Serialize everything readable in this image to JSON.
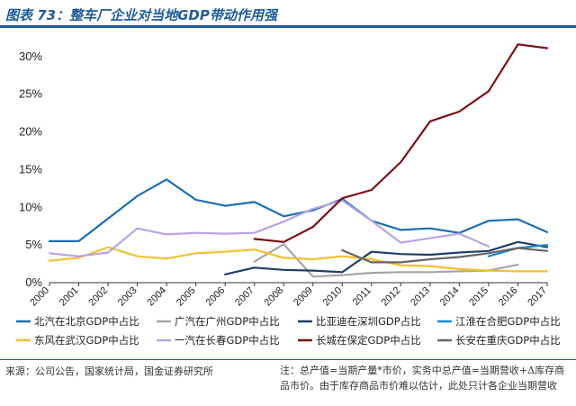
{
  "title": "图表 73：整车厂企业对当地GDP带动作用强",
  "source": "来源：公司公告，国家统计局，国金证券研究所",
  "note": "注：总产值=当期产量*市价，实务中总产值=当期营收+Δ库存商品市价。由于库存商品市价难以估计，此处只计各企业当期营收",
  "colors": {
    "beiqi": "#1a6fb5",
    "guangqi": "#a6a6a6",
    "byd": "#1f3f66",
    "jac": "#1a8ad4",
    "dongfeng": "#f2c12e",
    "faw": "#b9a3e3",
    "greatwall": "#7b1015",
    "changan": "#666666",
    "accent": "#1f5c99"
  },
  "chart_data": {
    "type": "line",
    "x": [
      "2000",
      "2001",
      "2002",
      "2003",
      "2004",
      "2005",
      "2006",
      "2007",
      "2008",
      "2009",
      "2010",
      "2011",
      "2012",
      "2013",
      "2014",
      "2015",
      "2016",
      "2017"
    ],
    "ylim": [
      0,
      32
    ],
    "yticks": [
      "0%",
      "5%",
      "10%",
      "15%",
      "20%",
      "25%",
      "30%"
    ],
    "ytick_values": [
      0,
      5,
      10,
      15,
      20,
      25,
      30
    ],
    "grid": false,
    "legend_position": "bottom",
    "series": [
      {
        "key": "beiqi",
        "name": "北汽在北京GDP中占比",
        "values": [
          5.5,
          5.5,
          8.5,
          11.5,
          13.7,
          11.0,
          10.2,
          10.7,
          8.8,
          9.6,
          11.1,
          8.2,
          7.0,
          7.2,
          6.6,
          8.2,
          8.4,
          6.7
        ]
      },
      {
        "key": "guangqi",
        "name": "广汽在广州GDP中占比",
        "values": [
          null,
          null,
          null,
          null,
          null,
          null,
          null,
          2.8,
          5.1,
          0.8,
          1.0,
          1.3,
          1.4,
          1.4,
          1.5,
          1.6,
          2.4,
          null
        ]
      },
      {
        "key": "byd",
        "name": "比亚迪在深圳GDP占比",
        "values": [
          null,
          null,
          null,
          null,
          null,
          null,
          1.1,
          2.0,
          1.7,
          1.6,
          1.4,
          4.1,
          3.8,
          3.7,
          4.0,
          4.2,
          5.4,
          4.7
        ]
      },
      {
        "key": "jac",
        "name": "江淮在合肥GDP中占比",
        "values": [
          null,
          null,
          null,
          null,
          null,
          null,
          null,
          null,
          null,
          null,
          null,
          null,
          null,
          null,
          null,
          3.5,
          4.6,
          5.0
        ]
      },
      {
        "key": "dongfeng",
        "name": "东风在武汉GDP中占比",
        "values": [
          2.9,
          3.3,
          4.7,
          3.5,
          3.2,
          3.9,
          4.1,
          4.4,
          3.3,
          3.1,
          3.5,
          3.1,
          2.3,
          2.2,
          1.8,
          1.6,
          1.5,
          1.5
        ]
      },
      {
        "key": "faw",
        "name": "一汽在长春GDP中占比",
        "values": [
          3.9,
          3.5,
          4.0,
          7.2,
          6.4,
          6.6,
          6.5,
          6.6,
          8.1,
          9.8,
          10.9,
          8.2,
          5.3,
          5.9,
          6.5,
          4.8,
          null,
          null
        ]
      },
      {
        "key": "greatwall",
        "name": "长城在保定GDP中占比",
        "values": [
          null,
          null,
          null,
          null,
          null,
          null,
          null,
          5.8,
          5.4,
          7.4,
          11.2,
          12.3,
          16.0,
          21.4,
          22.7,
          25.4,
          31.6,
          31.1
        ]
      },
      {
        "key": "changan",
        "name": "长安在重庆GDP中占比",
        "values": [
          null,
          null,
          null,
          null,
          null,
          null,
          null,
          null,
          null,
          null,
          4.3,
          2.7,
          2.7,
          3.1,
          3.4,
          3.9,
          4.6,
          4.2
        ]
      }
    ]
  }
}
